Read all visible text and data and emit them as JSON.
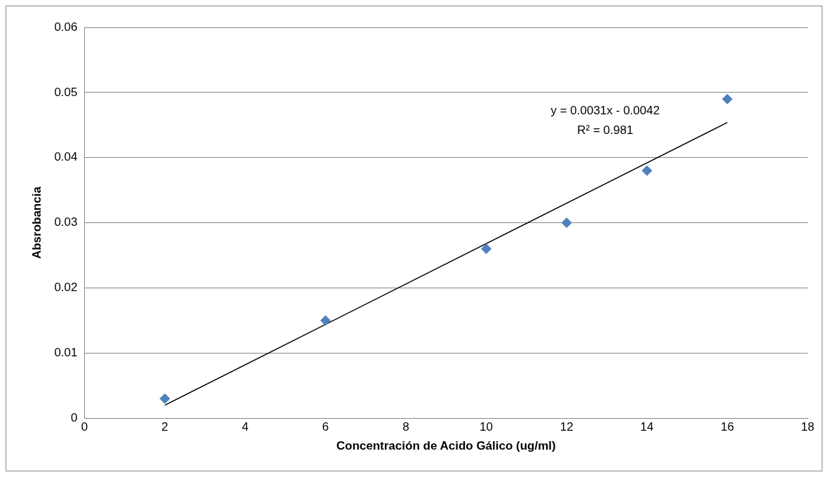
{
  "chart_data": {
    "type": "scatter",
    "xlabel": "Concentración de Acido Gálico (ug/ml)",
    "ylabel": "Absrobancia",
    "xlim": [
      0,
      18
    ],
    "xticks": [
      0,
      2,
      4,
      6,
      8,
      10,
      12,
      14,
      16,
      18
    ],
    "ylim": [
      0,
      0.06
    ],
    "yticks": [
      0,
      0.01,
      0.02,
      0.03,
      0.04,
      0.05,
      0.06
    ],
    "grid": "y",
    "legend": false,
    "series": [
      {
        "type": "scatter",
        "color": "#4f81bd",
        "marker": "diamond",
        "x": [
          2,
          6,
          10,
          12,
          14,
          16
        ],
        "values": [
          0.003,
          0.015,
          0.026,
          0.03,
          0.038,
          0.049
        ]
      },
      {
        "type": "line",
        "color": "#000000",
        "marker": "none",
        "line_style": "solid",
        "x": [
          2,
          16
        ],
        "values": [
          0.002,
          0.0454
        ]
      }
    ],
    "annotations": [
      "y = 0.0031x - 0.0042",
      "R² = 0.981"
    ]
  }
}
